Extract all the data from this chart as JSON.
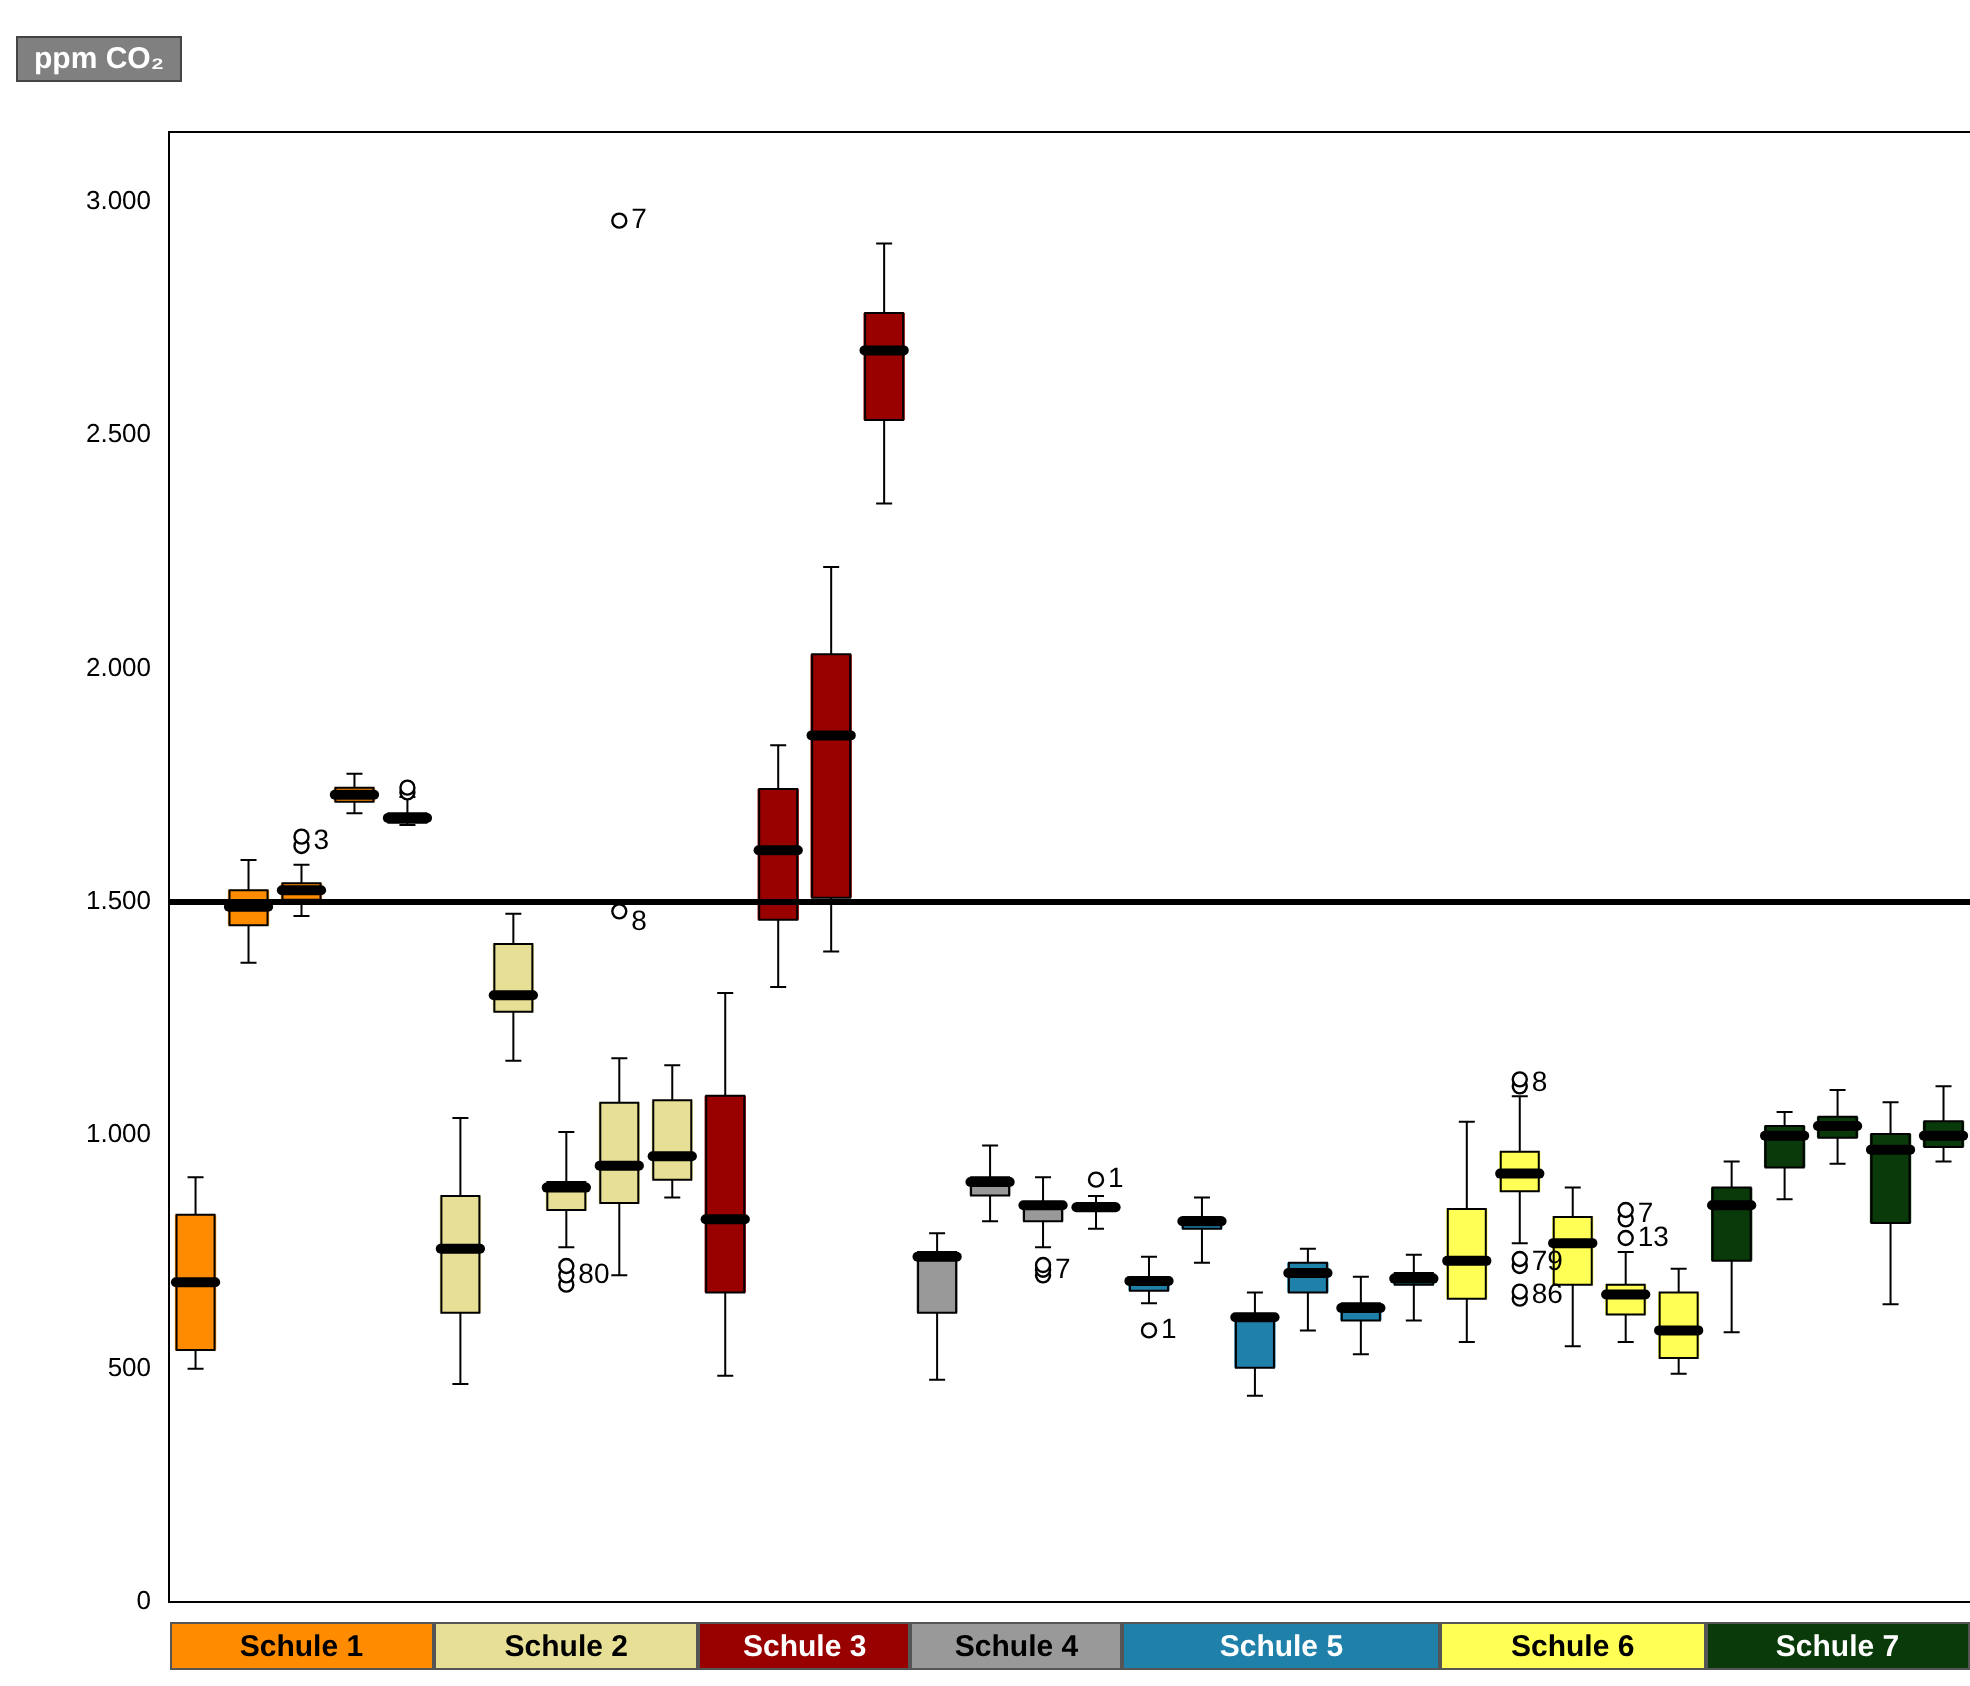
{
  "chart_data": {
    "type": "box",
    "ylabel": "ppm CO₂",
    "tick_labels": "y",
    "categories": [
      null,
      null,
      null,
      null,
      null,
      null,
      null,
      null,
      null,
      null,
      null,
      null,
      null,
      null,
      null,
      null,
      null,
      null,
      null,
      null,
      null,
      null,
      null,
      null,
      null,
      null,
      null,
      null,
      null,
      null,
      null,
      null,
      null,
      null
    ],
    "ylim": [
      0,
      3150
    ],
    "yticks": [
      {
        "value": 0,
        "label": "0"
      },
      {
        "value": 500,
        "label": "500"
      },
      {
        "value": 1000,
        "label": "1.000"
      },
      {
        "value": 1500,
        "label": "1.500"
      },
      {
        "value": 2000,
        "label": "2.000"
      },
      {
        "value": 2500,
        "label": "2.500"
      },
      {
        "value": 3000,
        "label": "3.000"
      }
    ],
    "ref_lines": [
      {
        "axis": "y",
        "value": 1500,
        "color": "#000000"
      }
    ],
    "series": [
      {
        "name": "Schule 1",
        "color": "#ff8c00",
        "boxes": [
          {
            "low": 500,
            "q1": 540,
            "median": 685,
            "q3": 830,
            "high": 910
          },
          {
            "low": 1370,
            "q1": 1450,
            "median": 1490,
            "q3": 1525,
            "high": 1590
          },
          {
            "low": 1470,
            "q1": 1505,
            "median": 1525,
            "q3": 1540,
            "high": 1580,
            "outliers": [
              1620,
              1640
            ]
          },
          {
            "low": 1690,
            "q1": 1715,
            "median": 1730,
            "q3": 1745,
            "high": 1775
          },
          {
            "low": 1665,
            "q1": 1670,
            "median": 1680,
            "q3": 1690,
            "high": 1725,
            "outliers": [
              1735,
              1745
            ]
          },
          null,
          null,
          null,
          null,
          null,
          null,
          null,
          null,
          null,
          null,
          null,
          null,
          null,
          null,
          null,
          null,
          null,
          null,
          null,
          null,
          null,
          null,
          null,
          null,
          null,
          null,
          null,
          null,
          null
        ]
      },
      {
        "name": "Schule 2",
        "color": "#e6df95",
        "boxes": [
          null,
          null,
          null,
          null,
          null,
          {
            "low": 467,
            "q1": 620,
            "median": 757,
            "q3": 870,
            "high": 1037
          },
          {
            "low": 1160,
            "q1": 1265,
            "median": 1300,
            "q3": 1410,
            "high": 1475
          },
          {
            "low": 760,
            "q1": 840,
            "median": 888,
            "q3": 900,
            "high": 1007,
            "outliers": [
              680,
              700,
              720
            ]
          },
          {
            "low": 700,
            "q1": 855,
            "median": 935,
            "q3": 1070,
            "high": 1165,
            "outliers": [
              1480,
              2960
            ]
          },
          {
            "low": 867,
            "q1": 905,
            "median": 955,
            "q3": 1075,
            "high": 1150
          },
          null,
          null,
          null,
          null,
          null,
          null,
          null,
          null,
          null,
          null,
          null,
          null,
          null,
          null,
          null,
          null,
          null,
          null,
          null,
          null,
          null,
          null,
          null,
          null
        ]
      },
      {
        "name": "Schule 3",
        "color": "#990000",
        "boxes": [
          null,
          null,
          null,
          null,
          null,
          null,
          null,
          null,
          null,
          null,
          {
            "low": 485,
            "q1": 663,
            "median": 820,
            "q3": 1085,
            "high": 1305
          },
          {
            "low": 1318,
            "q1": 1462,
            "median": 1611,
            "q3": 1742,
            "high": 1836
          },
          {
            "low": 1394,
            "q1": 1509,
            "median": 1857,
            "q3": 2031,
            "high": 2218
          },
          {
            "low": 2354,
            "q1": 2533,
            "median": 2682,
            "q3": 2762,
            "high": 2911
          },
          null,
          null,
          null,
          null,
          null,
          null,
          null,
          null,
          null,
          null,
          null,
          null,
          null,
          null,
          null,
          null,
          null,
          null,
          null,
          null
        ]
      },
      {
        "name": "Schule 4",
        "color": "#999999",
        "boxes": [
          null,
          null,
          null,
          null,
          null,
          null,
          null,
          null,
          null,
          null,
          null,
          null,
          null,
          null,
          {
            "low": 476,
            "q1": 620,
            "median": 740,
            "q3": 750,
            "high": 790
          },
          {
            "low": 816,
            "q1": 871,
            "median": 900,
            "q3": 910,
            "high": 978
          },
          {
            "low": 760,
            "q1": 816,
            "median": 850,
            "q3": 855,
            "high": 910,
            "outliers": [
              700,
              712,
              722
            ]
          },
          {
            "low": 800,
            "q1": 840,
            "median": 846,
            "q3": 855,
            "high": 870,
            "outliers": [
              905
            ]
          },
          null,
          null,
          null,
          null,
          null,
          null,
          null,
          null,
          null,
          null,
          null,
          null,
          null,
          null,
          null,
          null
        ]
      },
      {
        "name": "Schule 5",
        "color": "#1f80aa",
        "boxes": [
          null,
          null,
          null,
          null,
          null,
          null,
          null,
          null,
          null,
          null,
          null,
          null,
          null,
          null,
          null,
          null,
          null,
          null,
          {
            "low": 640,
            "q1": 667,
            "median": 688,
            "q3": 695,
            "high": 740,
            "outliers": [
              582
            ]
          },
          {
            "low": 727,
            "q1": 800,
            "median": 816,
            "q3": 825,
            "high": 867
          },
          {
            "low": 442,
            "q1": 502,
            "median": 610,
            "q3": 616,
            "high": 663
          },
          {
            "low": 582,
            "q1": 663,
            "median": 705,
            "q3": 727,
            "high": 757
          },
          {
            "low": 531,
            "q1": 603,
            "median": 630,
            "q3": 640,
            "high": 697
          },
          {
            "low": 603,
            "q1": 680,
            "median": 693,
            "q3": 705,
            "high": 744
          },
          null,
          null,
          null,
          null,
          null,
          null,
          null,
          null,
          null,
          null
        ]
      },
      {
        "name": "Schule 6",
        "color": "#ffff55",
        "boxes": [
          null,
          null,
          null,
          null,
          null,
          null,
          null,
          null,
          null,
          null,
          null,
          null,
          null,
          null,
          null,
          null,
          null,
          null,
          null,
          null,
          null,
          null,
          null,
          null,
          {
            "low": 557,
            "q1": 650,
            "median": 731,
            "q3": 842,
            "high": 1029
          },
          {
            "low": 769,
            "q1": 880,
            "median": 918,
            "q3": 965,
            "high": 1084,
            "outliers": [
              1105,
              1120,
              720,
              735,
              650,
              665
            ]
          },
          {
            "low": 548,
            "q1": 680,
            "median": 769,
            "q3": 825,
            "high": 888
          },
          {
            "low": 557,
            "q1": 616,
            "median": 659,
            "q3": 680,
            "high": 750,
            "outliers": [
              780,
              820,
              840
            ]
          },
          {
            "low": 489,
            "q1": 523,
            "median": 582,
            "q3": 663,
            "high": 714
          },
          null,
          null,
          null,
          null,
          null
        ]
      },
      {
        "name": "Schule 7",
        "color": "#0a3a0a",
        "boxes": [
          null,
          null,
          null,
          null,
          null,
          null,
          null,
          null,
          null,
          null,
          null,
          null,
          null,
          null,
          null,
          null,
          null,
          null,
          null,
          null,
          null,
          null,
          null,
          null,
          null,
          null,
          null,
          null,
          null,
          {
            "low": 578,
            "q1": 731,
            "median": 850,
            "q3": 888,
            "high": 944
          },
          {
            "low": 863,
            "q1": 931,
            "median": 999,
            "q3": 1020,
            "high": 1050
          },
          {
            "low": 939,
            "q1": 995,
            "median": 1020,
            "q3": 1040,
            "high": 1097
          },
          {
            "low": 638,
            "q1": 812,
            "median": 969,
            "q3": 1003,
            "high": 1071
          },
          {
            "low": 944,
            "q1": 975,
            "median": 999,
            "q3": 1030,
            "high": 1105
          }
        ]
      }
    ],
    "annotations": [
      "3",
      "80",
      "7",
      "8",
      "7",
      "1",
      "1",
      "8",
      "79",
      "86",
      "7",
      "13"
    ]
  }
}
